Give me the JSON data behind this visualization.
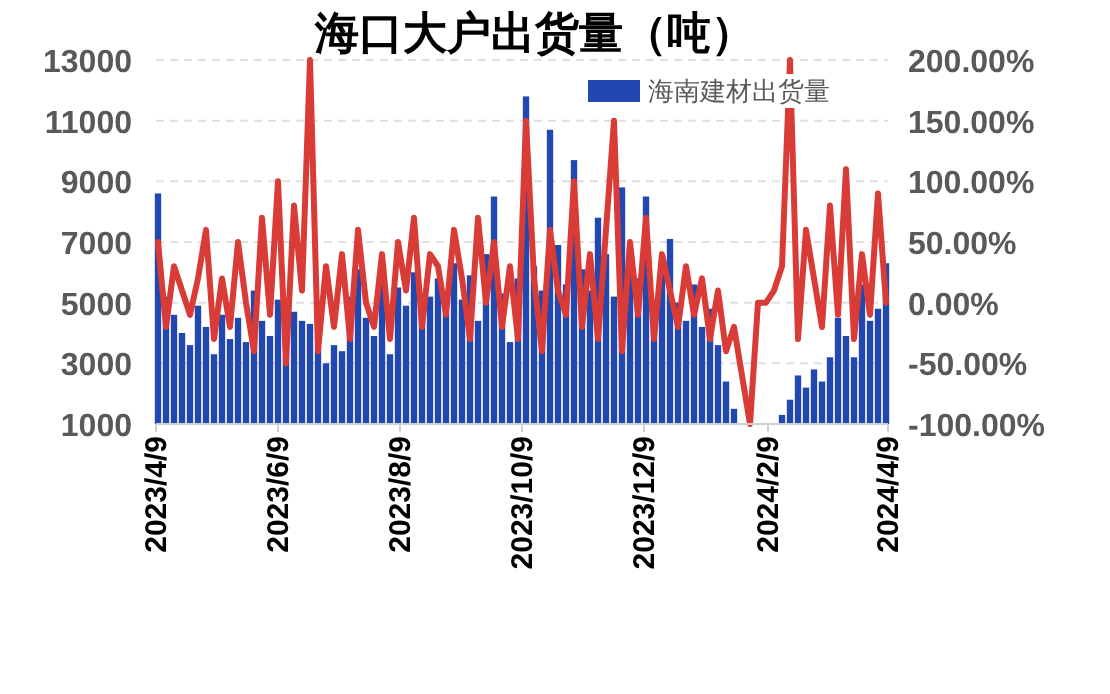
{
  "chart_data": {
    "type": "bar",
    "title": "海口大户出货量（吨）",
    "x": [
      "2023-04-10",
      "2023-04-14",
      "2023-04-18",
      "2023-04-22",
      "2023-04-26",
      "2023-04-30",
      "2023-05-04",
      "2023-05-08",
      "2023-05-12",
      "2023-05-16",
      "2023-05-20",
      "2023-05-24",
      "2023-05-28",
      "2023-06-01",
      "2023-06-05",
      "2023-06-09",
      "2023-06-13",
      "2023-06-17",
      "2023-06-21",
      "2023-06-25",
      "2023-06-29",
      "2023-07-03",
      "2023-07-07",
      "2023-07-11",
      "2023-07-15",
      "2023-07-19",
      "2023-07-23",
      "2023-07-27",
      "2023-07-31",
      "2023-08-04",
      "2023-08-08",
      "2023-08-12",
      "2023-08-16",
      "2023-08-20",
      "2023-08-24",
      "2023-08-28",
      "2023-09-01",
      "2023-09-05",
      "2023-09-09",
      "2023-09-13",
      "2023-09-17",
      "2023-09-21",
      "2023-09-25",
      "2023-09-29",
      "2023-10-03",
      "2023-10-07",
      "2023-10-11",
      "2023-10-15",
      "2023-10-19",
      "2023-10-23",
      "2023-10-27",
      "2023-10-31",
      "2023-11-04",
      "2023-11-08",
      "2023-11-12",
      "2023-11-16",
      "2023-11-20",
      "2023-11-24",
      "2023-11-28",
      "2023-12-02",
      "2023-12-06",
      "2023-12-10",
      "2023-12-14",
      "2023-12-18",
      "2023-12-22",
      "2023-12-26",
      "2023-12-30",
      "2024-01-03",
      "2024-01-07",
      "2024-01-11",
      "2024-01-15",
      "2024-01-19",
      "2024-01-23",
      "2024-01-27",
      "2024-01-31",
      "2024-02-04",
      "2024-02-08",
      "2024-02-12",
      "2024-02-16",
      "2024-02-20",
      "2024-02-24",
      "2024-02-28",
      "2024-03-03",
      "2024-03-07",
      "2024-03-11",
      "2024-03-15",
      "2024-03-19",
      "2024-03-23",
      "2024-03-27",
      "2024-03-31",
      "2024-04-04",
      "2024-04-08"
    ],
    "series": [
      {
        "name": "海南建材出货量",
        "color": "#2148b0",
        "values": [
          8600,
          5200,
          4600,
          4000,
          3600,
          4900,
          4200,
          3300,
          4600,
          3800,
          4500,
          3700,
          5400,
          4400,
          3900,
          5100,
          3200,
          4700,
          4400,
          4300,
          3500,
          3000,
          3600,
          3400,
          5200,
          6100,
          4500,
          3900,
          5600,
          3300,
          5500,
          4900,
          6000,
          4600,
          5200,
          5800,
          4700,
          6300,
          5100,
          5900,
          4400,
          6600,
          8500,
          5300,
          3700,
          5800,
          11800,
          6200,
          5400,
          10700,
          6900,
          5600,
          9700,
          6100,
          5400,
          7800,
          6600,
          5200,
          8800,
          6800,
          5800,
          8500,
          5100,
          6400,
          7100,
          5000,
          4400,
          5600,
          4200,
          4800,
          3600,
          2400,
          1500,
          null,
          null,
          null,
          null,
          null,
          1300,
          1800,
          2600,
          2200,
          2800,
          2400,
          3200,
          4500,
          3900,
          3200,
          5600,
          4400,
          4800,
          6300
        ]
      },
      {
        "type": "line",
        "axis": "y2",
        "color": "#d93c36",
        "values": [
          50,
          -20,
          30,
          10,
          -10,
          20,
          60,
          -30,
          20,
          -20,
          50,
          0,
          -40,
          70,
          -10,
          100,
          -50,
          80,
          10,
          200,
          -40,
          30,
          -20,
          40,
          -30,
          60,
          0,
          -20,
          40,
          -30,
          50,
          10,
          70,
          -20,
          40,
          30,
          -10,
          60,
          20,
          -30,
          70,
          0,
          50,
          -20,
          30,
          -30,
          150,
          20,
          -40,
          60,
          10,
          -10,
          100,
          -20,
          40,
          -30,
          60,
          150,
          -40,
          50,
          -10,
          70,
          -30,
          40,
          10,
          -20,
          30,
          -10,
          20,
          -30,
          10,
          -40,
          -20,
          -60,
          -100,
          0,
          0,
          10,
          30,
          200,
          -30,
          60,
          20,
          -20,
          80,
          -10,
          110,
          -30,
          40,
          -10,
          90,
          0
        ]
      }
    ],
    "xlim": [
      "2023-04-09",
      "2024-04-09"
    ],
    "xticks": [
      {
        "value": "2023-04-09",
        "label": "2023/4/9"
      },
      {
        "value": "2023-06-09",
        "label": "2023/6/9"
      },
      {
        "value": "2023-08-09",
        "label": "2023/8/9"
      },
      {
        "value": "2023-10-09",
        "label": "2023/10/9"
      },
      {
        "value": "2023-12-09",
        "label": "2023/12/9"
      },
      {
        "value": "2024-02-09",
        "label": "2024/2/9"
      },
      {
        "value": "2024-04-09",
        "label": "2024/4/9"
      }
    ],
    "ylim": [
      1000,
      13000
    ],
    "yticks": [
      1000,
      3000,
      5000,
      7000,
      9000,
      11000,
      13000
    ],
    "y2lim": [
      -100,
      200
    ],
    "y2ticks": [
      {
        "value": -100,
        "label": "-100.00%"
      },
      {
        "value": -50,
        "label": "-50.00%"
      },
      {
        "value": 0,
        "label": "0.00%"
      },
      {
        "value": 50,
        "label": "50.00%"
      },
      {
        "value": 100,
        "label": "100.00%"
      },
      {
        "value": 150,
        "label": "150.00%"
      },
      {
        "value": 200,
        "label": "200.00%"
      }
    ],
    "grid": "y",
    "legend": "top right"
  }
}
